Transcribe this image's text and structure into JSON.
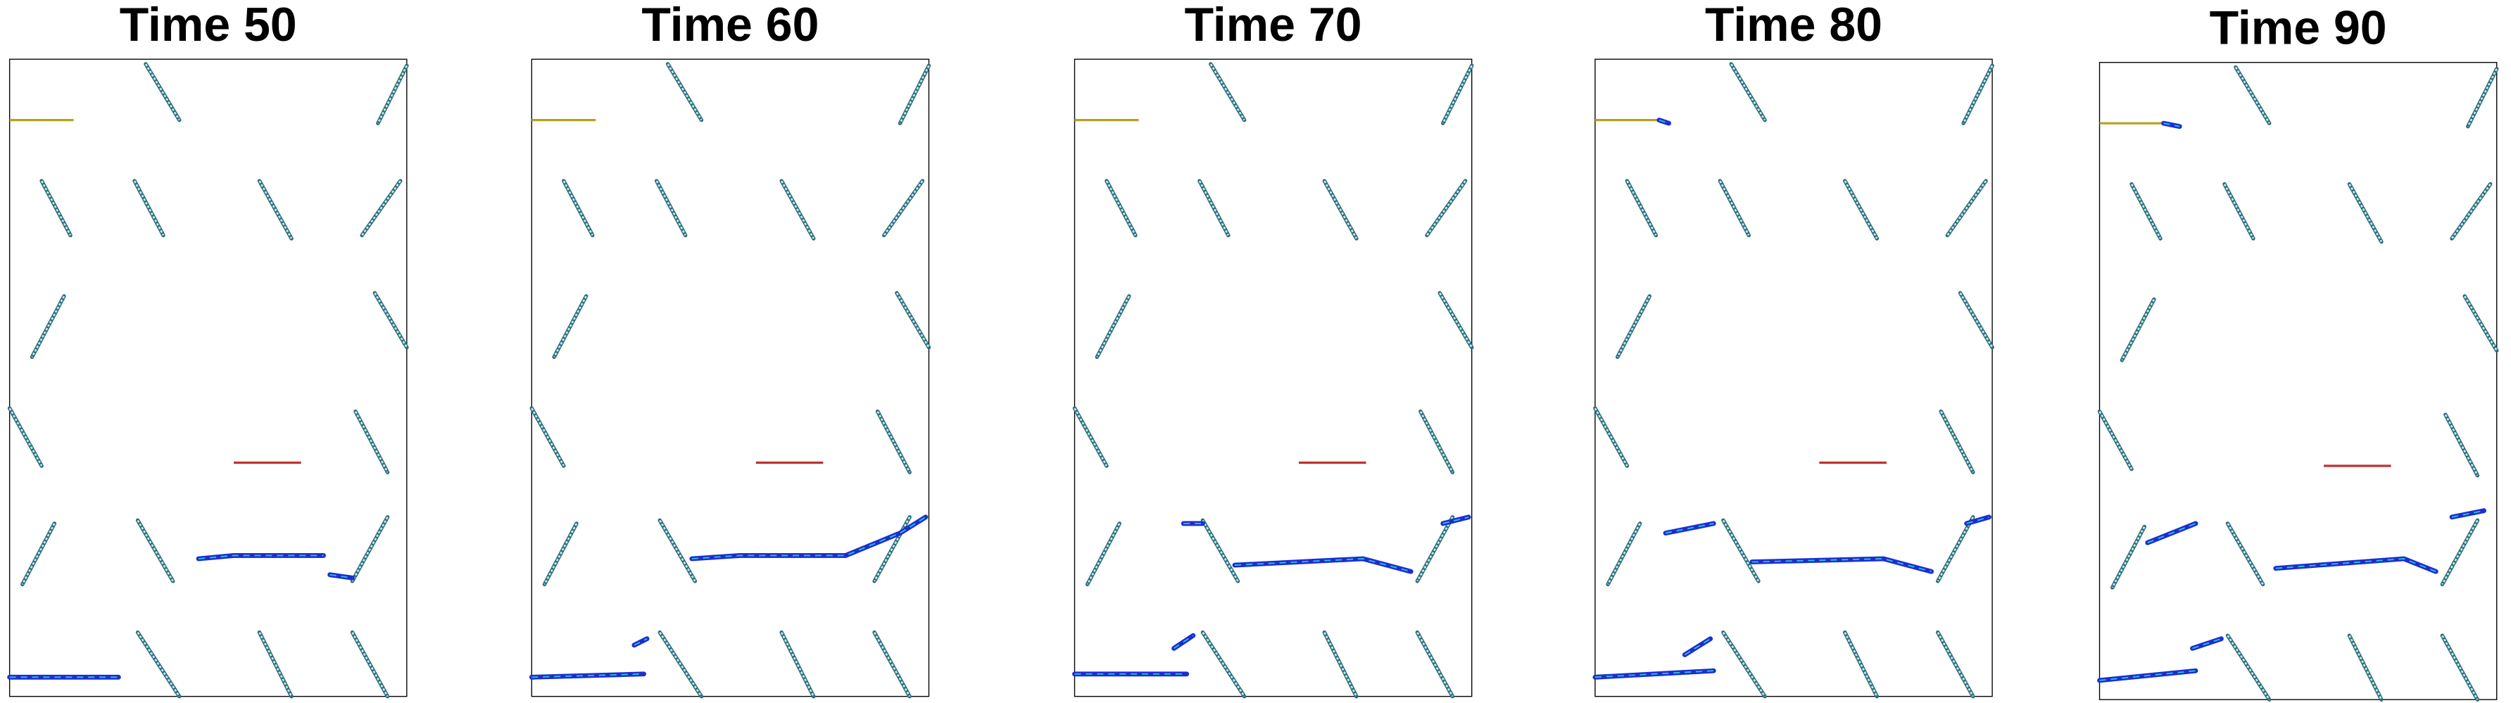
{
  "panels": [
    {
      "title": "Time 50"
    },
    {
      "title": "Time 60"
    },
    {
      "title": "Time 70"
    },
    {
      "title": "Time 80"
    },
    {
      "title": "Time 90"
    }
  ]
}
